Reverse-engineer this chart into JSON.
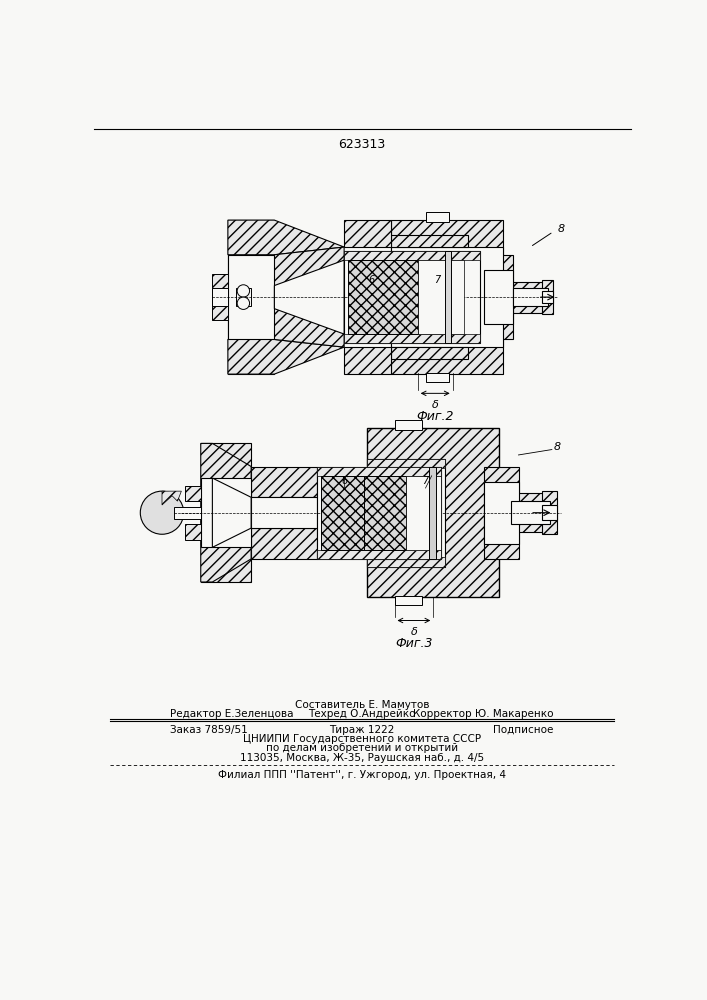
{
  "patent_number": "623313",
  "bg_color": "#f8f8f6",
  "fig2_caption": "Фиг.2",
  "fig3_caption": "Фиг.3",
  "footer_line1_left": "Редактор Е.Зеленцова",
  "footer_line1_mid_top": "Составитель Е. Мамутов",
  "footer_line1_mid_bot": "Техред О.Андрейко",
  "footer_line1_right": "Корректор Ю. Макаренко",
  "footer_line2_left": "Заказ 7859/51",
  "footer_line2_mid": "Тираж 1222",
  "footer_line2_right": "Подписное",
  "footer_line3": "ЦНИИПИ Государственного комитета СССР",
  "footer_line4": "по делам изобретений и открытий",
  "footer_line5": "113035, Москва, Ж-35, Раушская наб., д. 4/5",
  "footer_line6": "Филиал ППП ''Патент'', г. Ужгород, ул. Проектная, 4"
}
